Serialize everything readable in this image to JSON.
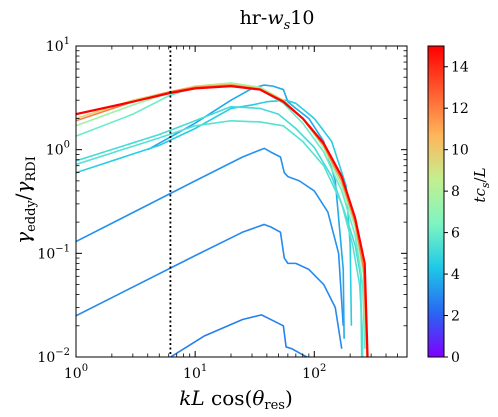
{
  "chart_data": {
    "type": "line",
    "title": "hr-w_s10",
    "title_parts": {
      "prefix": "hr-",
      "var": "w",
      "sub": "s",
      "suffix": "10"
    },
    "xlabel": "kL cos(θ_res)",
    "ylabel": "γ_eddy/γ_RDI",
    "x_scale": "log",
    "y_scale": "log",
    "xlim": [
      1,
      600
    ],
    "ylim": [
      0.01,
      10
    ],
    "x_ticks": [
      {
        "value": 1,
        "mantissa": "10",
        "exp": "0"
      },
      {
        "value": 10,
        "mantissa": "10",
        "exp": "1"
      },
      {
        "value": 100,
        "mantissa": "10",
        "exp": "2"
      }
    ],
    "y_ticks": [
      {
        "value": 0.01,
        "mantissa": "10",
        "exp": "−2"
      },
      {
        "value": 0.1,
        "mantissa": "10",
        "exp": "−1"
      },
      {
        "value": 1,
        "mantissa": "10",
        "exp": "0"
      },
      {
        "value": 10,
        "mantissa": "10",
        "exp": "1"
      }
    ],
    "vline_x": 6.2,
    "colorbar": {
      "label": "tc_s/L",
      "range": [
        0,
        15
      ],
      "ticks": [
        "0",
        "2",
        "4",
        "6",
        "8",
        "10",
        "12",
        "14"
      ],
      "stops": [
        "#7f00ff",
        "#2966f2",
        "#1ec8e8",
        "#7ef5c1",
        "#c4ef8f",
        "#ffb55a",
        "#ff5a2e",
        "#ff0000"
      ]
    },
    "series": [
      {
        "t": 2.7,
        "points": [
          [
            5.8,
            0.0095
          ],
          [
            12,
            0.016
          ],
          [
            25,
            0.023
          ],
          [
            36,
            0.0255
          ],
          [
            40,
            0.024
          ],
          [
            55,
            0.02
          ],
          [
            58,
            0.0125
          ],
          [
            65,
            0.012
          ],
          [
            80,
            0.0105
          ],
          [
            95,
            0.0095
          ]
        ]
      },
      {
        "t": 2.9,
        "points": [
          [
            1,
            0.025
          ],
          [
            10,
            0.095
          ],
          [
            25,
            0.16
          ],
          [
            38,
            0.19
          ],
          [
            43,
            0.18
          ],
          [
            52,
            0.16
          ],
          [
            56,
            0.09
          ],
          [
            60,
            0.08
          ],
          [
            70,
            0.08
          ],
          [
            90,
            0.07
          ],
          [
            120,
            0.05
          ],
          [
            150,
            0.03
          ],
          [
            170,
            0.012
          ]
        ]
      },
      {
        "t": 3.1,
        "points": [
          [
            1,
            0.13
          ],
          [
            10,
            0.5
          ],
          [
            25,
            0.85
          ],
          [
            38,
            1.03
          ],
          [
            43,
            0.95
          ],
          [
            52,
            0.85
          ],
          [
            56,
            0.6
          ],
          [
            60,
            0.55
          ],
          [
            75,
            0.5
          ],
          [
            100,
            0.4
          ],
          [
            130,
            0.25
          ],
          [
            160,
            0.1
          ],
          [
            175,
            0.02
          ]
        ]
      },
      {
        "t": 3.6,
        "points": [
          [
            4,
            1.0
          ],
          [
            10,
            1.8
          ],
          [
            20,
            3.0
          ],
          [
            30,
            3.9
          ],
          [
            38,
            4.2
          ],
          [
            45,
            4.1
          ],
          [
            55,
            3.8
          ],
          [
            60,
            2.9
          ],
          [
            70,
            2.5
          ],
          [
            90,
            2.0
          ],
          [
            120,
            1.2
          ],
          [
            150,
            0.5
          ],
          [
            175,
            0.07
          ],
          [
            178,
            0.015
          ]
        ]
      },
      {
        "t": 4.5,
        "points": [
          [
            1,
            0.6
          ],
          [
            5,
            1.1
          ],
          [
            10,
            1.6
          ],
          [
            20,
            2.5
          ],
          [
            30,
            2.7
          ],
          [
            40,
            2.9
          ],
          [
            58,
            3.0
          ],
          [
            70,
            2.8
          ],
          [
            100,
            2.0
          ],
          [
            140,
            1.2
          ],
          [
            185,
            0.45
          ],
          [
            200,
            0.12
          ],
          [
            205,
            0.02
          ]
        ]
      },
      {
        "t": 5.2,
        "points": [
          [
            1,
            0.78
          ],
          [
            5,
            1.4
          ],
          [
            10,
            1.9
          ],
          [
            20,
            2.6
          ],
          [
            35,
            2.5
          ],
          [
            50,
            2.2
          ],
          [
            70,
            1.6
          ],
          [
            100,
            1.05
          ],
          [
            140,
            0.55
          ],
          [
            180,
            0.25
          ],
          [
            220,
            0.12
          ],
          [
            245,
            0.06
          ],
          [
            250,
            0.01
          ]
        ]
      },
      {
        "t": 5.5,
        "points": [
          [
            1,
            0.72
          ],
          [
            5,
            1.3
          ],
          [
            10,
            1.7
          ],
          [
            20,
            1.9
          ],
          [
            35,
            1.85
          ],
          [
            55,
            1.7
          ],
          [
            80,
            1.2
          ],
          [
            120,
            0.7
          ],
          [
            170,
            0.3
          ],
          [
            210,
            0.12
          ],
          [
            240,
            0.05
          ],
          [
            252,
            0.02
          ],
          [
            255,
            0.01
          ]
        ]
      },
      {
        "t": 6.0,
        "points": [
          [
            1,
            1.35
          ],
          [
            3,
            2.2
          ],
          [
            6,
            3.3
          ],
          [
            10,
            4.0
          ],
          [
            20,
            4.3
          ],
          [
            35,
            3.8
          ],
          [
            55,
            2.8
          ],
          [
            80,
            1.8
          ],
          [
            120,
            0.95
          ],
          [
            170,
            0.4
          ],
          [
            220,
            0.15
          ],
          [
            255,
            0.05
          ],
          [
            265,
            0.012
          ]
        ]
      },
      {
        "t": 7.5,
        "points": [
          [
            1,
            1.7
          ],
          [
            3,
            2.7
          ],
          [
            6,
            3.5
          ],
          [
            10,
            4.1
          ],
          [
            20,
            4.4
          ],
          [
            35,
            4.0
          ],
          [
            55,
            3.0
          ],
          [
            80,
            2.0
          ],
          [
            120,
            1.05
          ],
          [
            170,
            0.45
          ],
          [
            220,
            0.18
          ],
          [
            260,
            0.06
          ],
          [
            272,
            0.012
          ]
        ]
      },
      {
        "t": 9.5,
        "points": [
          [
            1,
            2.0
          ],
          [
            3,
            3.0
          ],
          [
            6,
            3.6
          ],
          [
            10,
            4.1
          ],
          [
            20,
            4.3
          ],
          [
            35,
            3.9
          ],
          [
            55,
            3.0
          ],
          [
            80,
            2.0
          ],
          [
            120,
            1.1
          ],
          [
            170,
            0.5
          ],
          [
            220,
            0.2
          ],
          [
            260,
            0.07
          ],
          [
            275,
            0.01
          ]
        ]
      },
      {
        "t": 12,
        "points": [
          [
            1,
            1.9
          ],
          [
            3,
            2.9
          ],
          [
            6,
            3.6
          ],
          [
            10,
            4.0
          ],
          [
            20,
            4.2
          ],
          [
            35,
            3.85
          ],
          [
            55,
            2.95
          ],
          [
            80,
            2.0
          ],
          [
            120,
            1.1
          ],
          [
            170,
            0.5
          ],
          [
            220,
            0.2
          ],
          [
            260,
            0.07
          ],
          [
            278,
            0.01
          ]
        ]
      },
      {
        "t": 15,
        "points": [
          [
            1,
            2.2
          ],
          [
            3,
            2.9
          ],
          [
            6,
            3.5
          ],
          [
            10,
            3.9
          ],
          [
            20,
            4.1
          ],
          [
            35,
            3.8
          ],
          [
            55,
            2.9
          ],
          [
            80,
            2.0
          ],
          [
            120,
            1.15
          ],
          [
            170,
            0.55
          ],
          [
            220,
            0.22
          ],
          [
            265,
            0.08
          ],
          [
            280,
            0.01
          ]
        ]
      }
    ]
  }
}
